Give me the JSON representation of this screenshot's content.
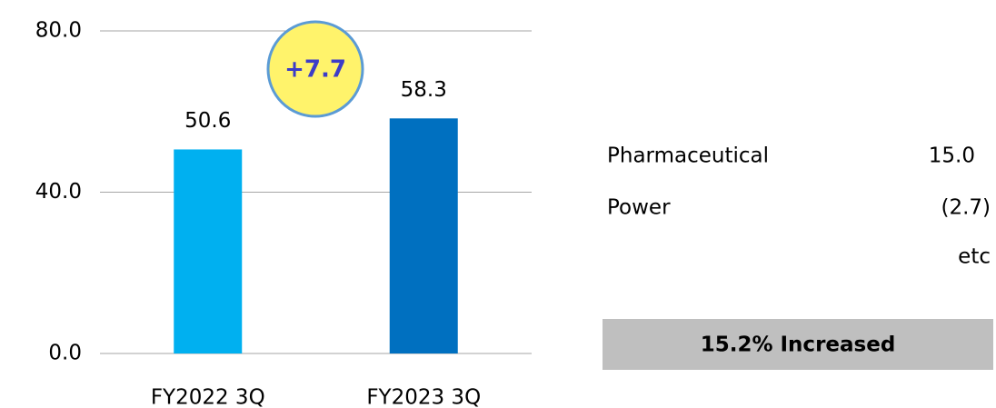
{
  "chart_data": {
    "type": "bar",
    "categories": [
      "FY2022 3Q",
      "FY2023 3Q"
    ],
    "values": [
      50.6,
      58.3
    ],
    "colors": [
      "#00b0f0",
      "#0070c0"
    ],
    "ylim": [
      0,
      80
    ],
    "yticks": [
      {
        "value": 0,
        "label": "0.0"
      },
      {
        "value": 40,
        "label": "40.0"
      },
      {
        "value": 80,
        "label": "80.0"
      }
    ],
    "grid": true,
    "difference_label": "+7.7",
    "breakdown": [
      {
        "label": "Pharmaceutical",
        "value": "15.0"
      },
      {
        "label": "Power",
        "value": "(2.7)"
      }
    ],
    "note": "etc",
    "summary": "15.2% Increased"
  }
}
